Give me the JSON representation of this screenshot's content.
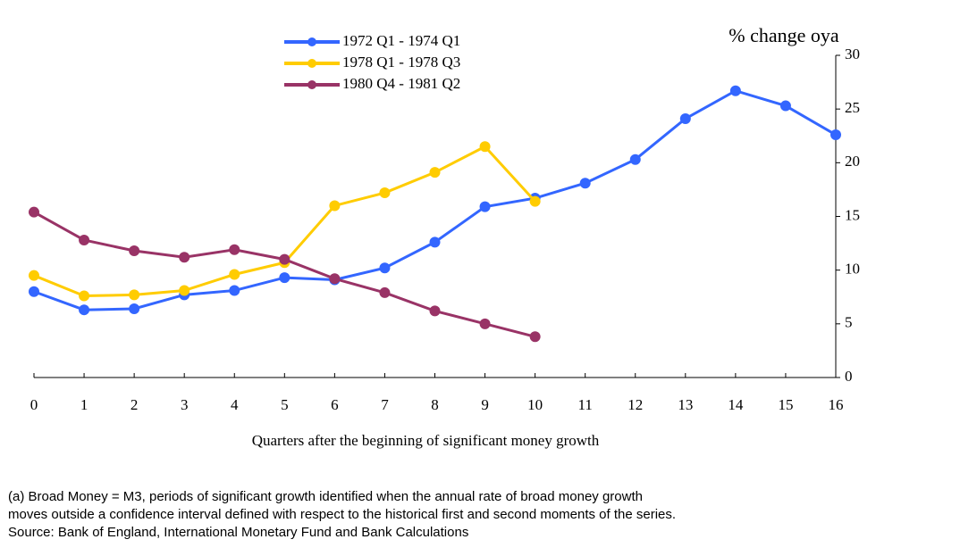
{
  "chart_data": {
    "type": "line",
    "y_axis_label": "% change oya",
    "x_axis_label": "Quarters after the beginning of significant money growth",
    "x": [
      0,
      1,
      2,
      3,
      4,
      5,
      6,
      7,
      8,
      9,
      10,
      11,
      12,
      13,
      14,
      15,
      16
    ],
    "series": [
      {
        "name": "1972 Q1 - 1974 Q1",
        "color": "#3366ff",
        "values": [
          8.0,
          6.3,
          6.4,
          7.7,
          8.1,
          9.3,
          9.1,
          10.2,
          12.6,
          15.9,
          16.7,
          18.1,
          20.3,
          24.1,
          26.7,
          25.3,
          22.6
        ]
      },
      {
        "name": "1978 Q1 - 1978 Q3",
        "color": "#ffcc00",
        "values": [
          9.5,
          7.6,
          7.7,
          8.1,
          9.6,
          10.7,
          16.0,
          17.2,
          19.1,
          21.5,
          16.4,
          null,
          null,
          null,
          null,
          null,
          null
        ]
      },
      {
        "name": "1980 Q4 - 1981 Q2",
        "color": "#993366",
        "values": [
          15.4,
          12.8,
          11.8,
          11.2,
          11.9,
          11.0,
          9.2,
          7.9,
          6.2,
          5.0,
          3.8,
          null,
          null,
          null,
          null,
          null,
          null
        ]
      }
    ],
    "xlim": [
      0,
      16
    ],
    "xticks": [
      0,
      1,
      2,
      3,
      4,
      5,
      6,
      7,
      8,
      9,
      10,
      11,
      12,
      13,
      14,
      15,
      16
    ],
    "ylim": [
      0,
      30
    ],
    "yticks": [
      0,
      5,
      10,
      15,
      20,
      25,
      30
    ],
    "legend": "top",
    "footnotes": [
      "(a) Broad Money = M3, periods of significant growth identified when the annual rate of broad money growth",
      "moves outside a confidence interval defined with respect to the historical first and second moments of the series.",
      "Source:  Bank of England, International Monetary Fund and Bank Calculations"
    ]
  }
}
